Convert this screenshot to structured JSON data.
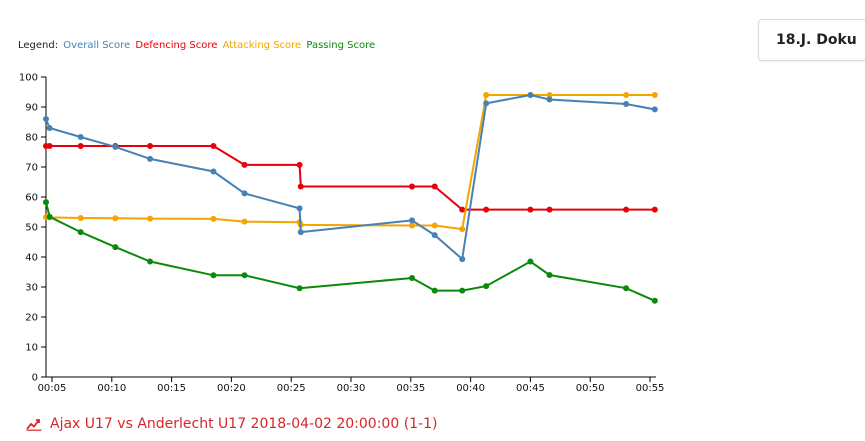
{
  "legend": {
    "prefix": "Legend:",
    "entries": [
      {
        "label": "Overall Score",
        "color": "#4682b4"
      },
      {
        "label": "Defencing Score",
        "color": "#e8000b"
      },
      {
        "label": "Attacking Score",
        "color": "#f5a400"
      },
      {
        "label": "Passing Score",
        "color": "#0a8a0a"
      }
    ]
  },
  "player": {
    "name": "18.J. Doku"
  },
  "match": {
    "title": "Ajax U17 vs Anderlecht U17 2018-04-02 20:00:00 (1-1)",
    "color": "#d62728",
    "icon": "chart-line-icon"
  },
  "chart_data": {
    "type": "line",
    "title": "",
    "xlabel": "",
    "ylabel": "",
    "x_unit": "minutes",
    "xlim": [
      4.5,
      55.5
    ],
    "ylim": [
      0,
      100
    ],
    "x_ticks": [
      5,
      10,
      15,
      20,
      25,
      30,
      35,
      40,
      45,
      50,
      55
    ],
    "x_tick_labels": [
      "00:05",
      "00:10",
      "00:15",
      "00:20",
      "00:25",
      "00:30",
      "00:35",
      "00:40",
      "00:45",
      "00:50",
      "00:55"
    ],
    "y_ticks": [
      0,
      10,
      20,
      30,
      40,
      50,
      60,
      70,
      80,
      90,
      100
    ],
    "grid": false,
    "legend_position": "top-left",
    "series": [
      {
        "name": "Defencing Score",
        "color": "#e8000b",
        "points": [
          [
            4.5,
            77
          ],
          [
            4.8,
            77
          ],
          [
            7.4,
            77
          ],
          [
            10.3,
            77
          ],
          [
            13.2,
            77
          ],
          [
            18.5,
            77
          ],
          [
            21.1,
            70.7
          ],
          [
            25.7,
            70.7
          ],
          [
            25.8,
            63.5
          ],
          [
            35.1,
            63.5
          ],
          [
            37.0,
            63.5
          ],
          [
            39.3,
            55.8
          ],
          [
            41.3,
            55.8
          ],
          [
            45.0,
            55.8
          ],
          [
            46.6,
            55.8
          ],
          [
            53.0,
            55.8
          ],
          [
            55.4,
            55.8
          ]
        ]
      },
      {
        "name": "Attacking Score",
        "color": "#f5a400",
        "points": [
          [
            4.5,
            53.3
          ],
          [
            4.8,
            53.2
          ],
          [
            7.4,
            53
          ],
          [
            10.3,
            52.9
          ],
          [
            13.2,
            52.8
          ],
          [
            18.5,
            52.7
          ],
          [
            21.1,
            51.8
          ],
          [
            25.7,
            51.6
          ],
          [
            25.8,
            50.7
          ],
          [
            35.1,
            50.5
          ],
          [
            37.0,
            50.5
          ],
          [
            39.3,
            49.3
          ],
          [
            41.3,
            94
          ],
          [
            45.0,
            94
          ],
          [
            46.6,
            94
          ],
          [
            53.0,
            94
          ],
          [
            55.4,
            94
          ]
        ]
      },
      {
        "name": "Overall Score",
        "color": "#4682b4",
        "points": [
          [
            4.5,
            86
          ],
          [
            4.8,
            83
          ],
          [
            7.4,
            80
          ],
          [
            10.3,
            76.7
          ],
          [
            13.2,
            72.7
          ],
          [
            18.5,
            68.5
          ],
          [
            21.1,
            61.2
          ],
          [
            25.7,
            56.2
          ],
          [
            25.8,
            48.3
          ],
          [
            35.1,
            52.2
          ],
          [
            37.0,
            47.3
          ],
          [
            39.3,
            39.3
          ],
          [
            41.3,
            91.2
          ],
          [
            45.0,
            94
          ],
          [
            46.6,
            92.5
          ],
          [
            53.0,
            91
          ],
          [
            55.4,
            89.2
          ]
        ]
      },
      {
        "name": "Passing Score",
        "color": "#0a8a0a",
        "points": [
          [
            4.5,
            58.3
          ],
          [
            4.8,
            53.4
          ],
          [
            7.4,
            48.3
          ],
          [
            10.3,
            43.3
          ],
          [
            13.2,
            38.5
          ],
          [
            18.5,
            33.9
          ],
          [
            21.1,
            33.9
          ],
          [
            25.7,
            29.6
          ],
          [
            35.1,
            33
          ],
          [
            37.0,
            28.8
          ],
          [
            39.3,
            28.8
          ],
          [
            41.3,
            30.3
          ],
          [
            45.0,
            38.5
          ],
          [
            46.6,
            34
          ],
          [
            53.0,
            29.6
          ],
          [
            55.4,
            25.4
          ]
        ]
      }
    ]
  }
}
